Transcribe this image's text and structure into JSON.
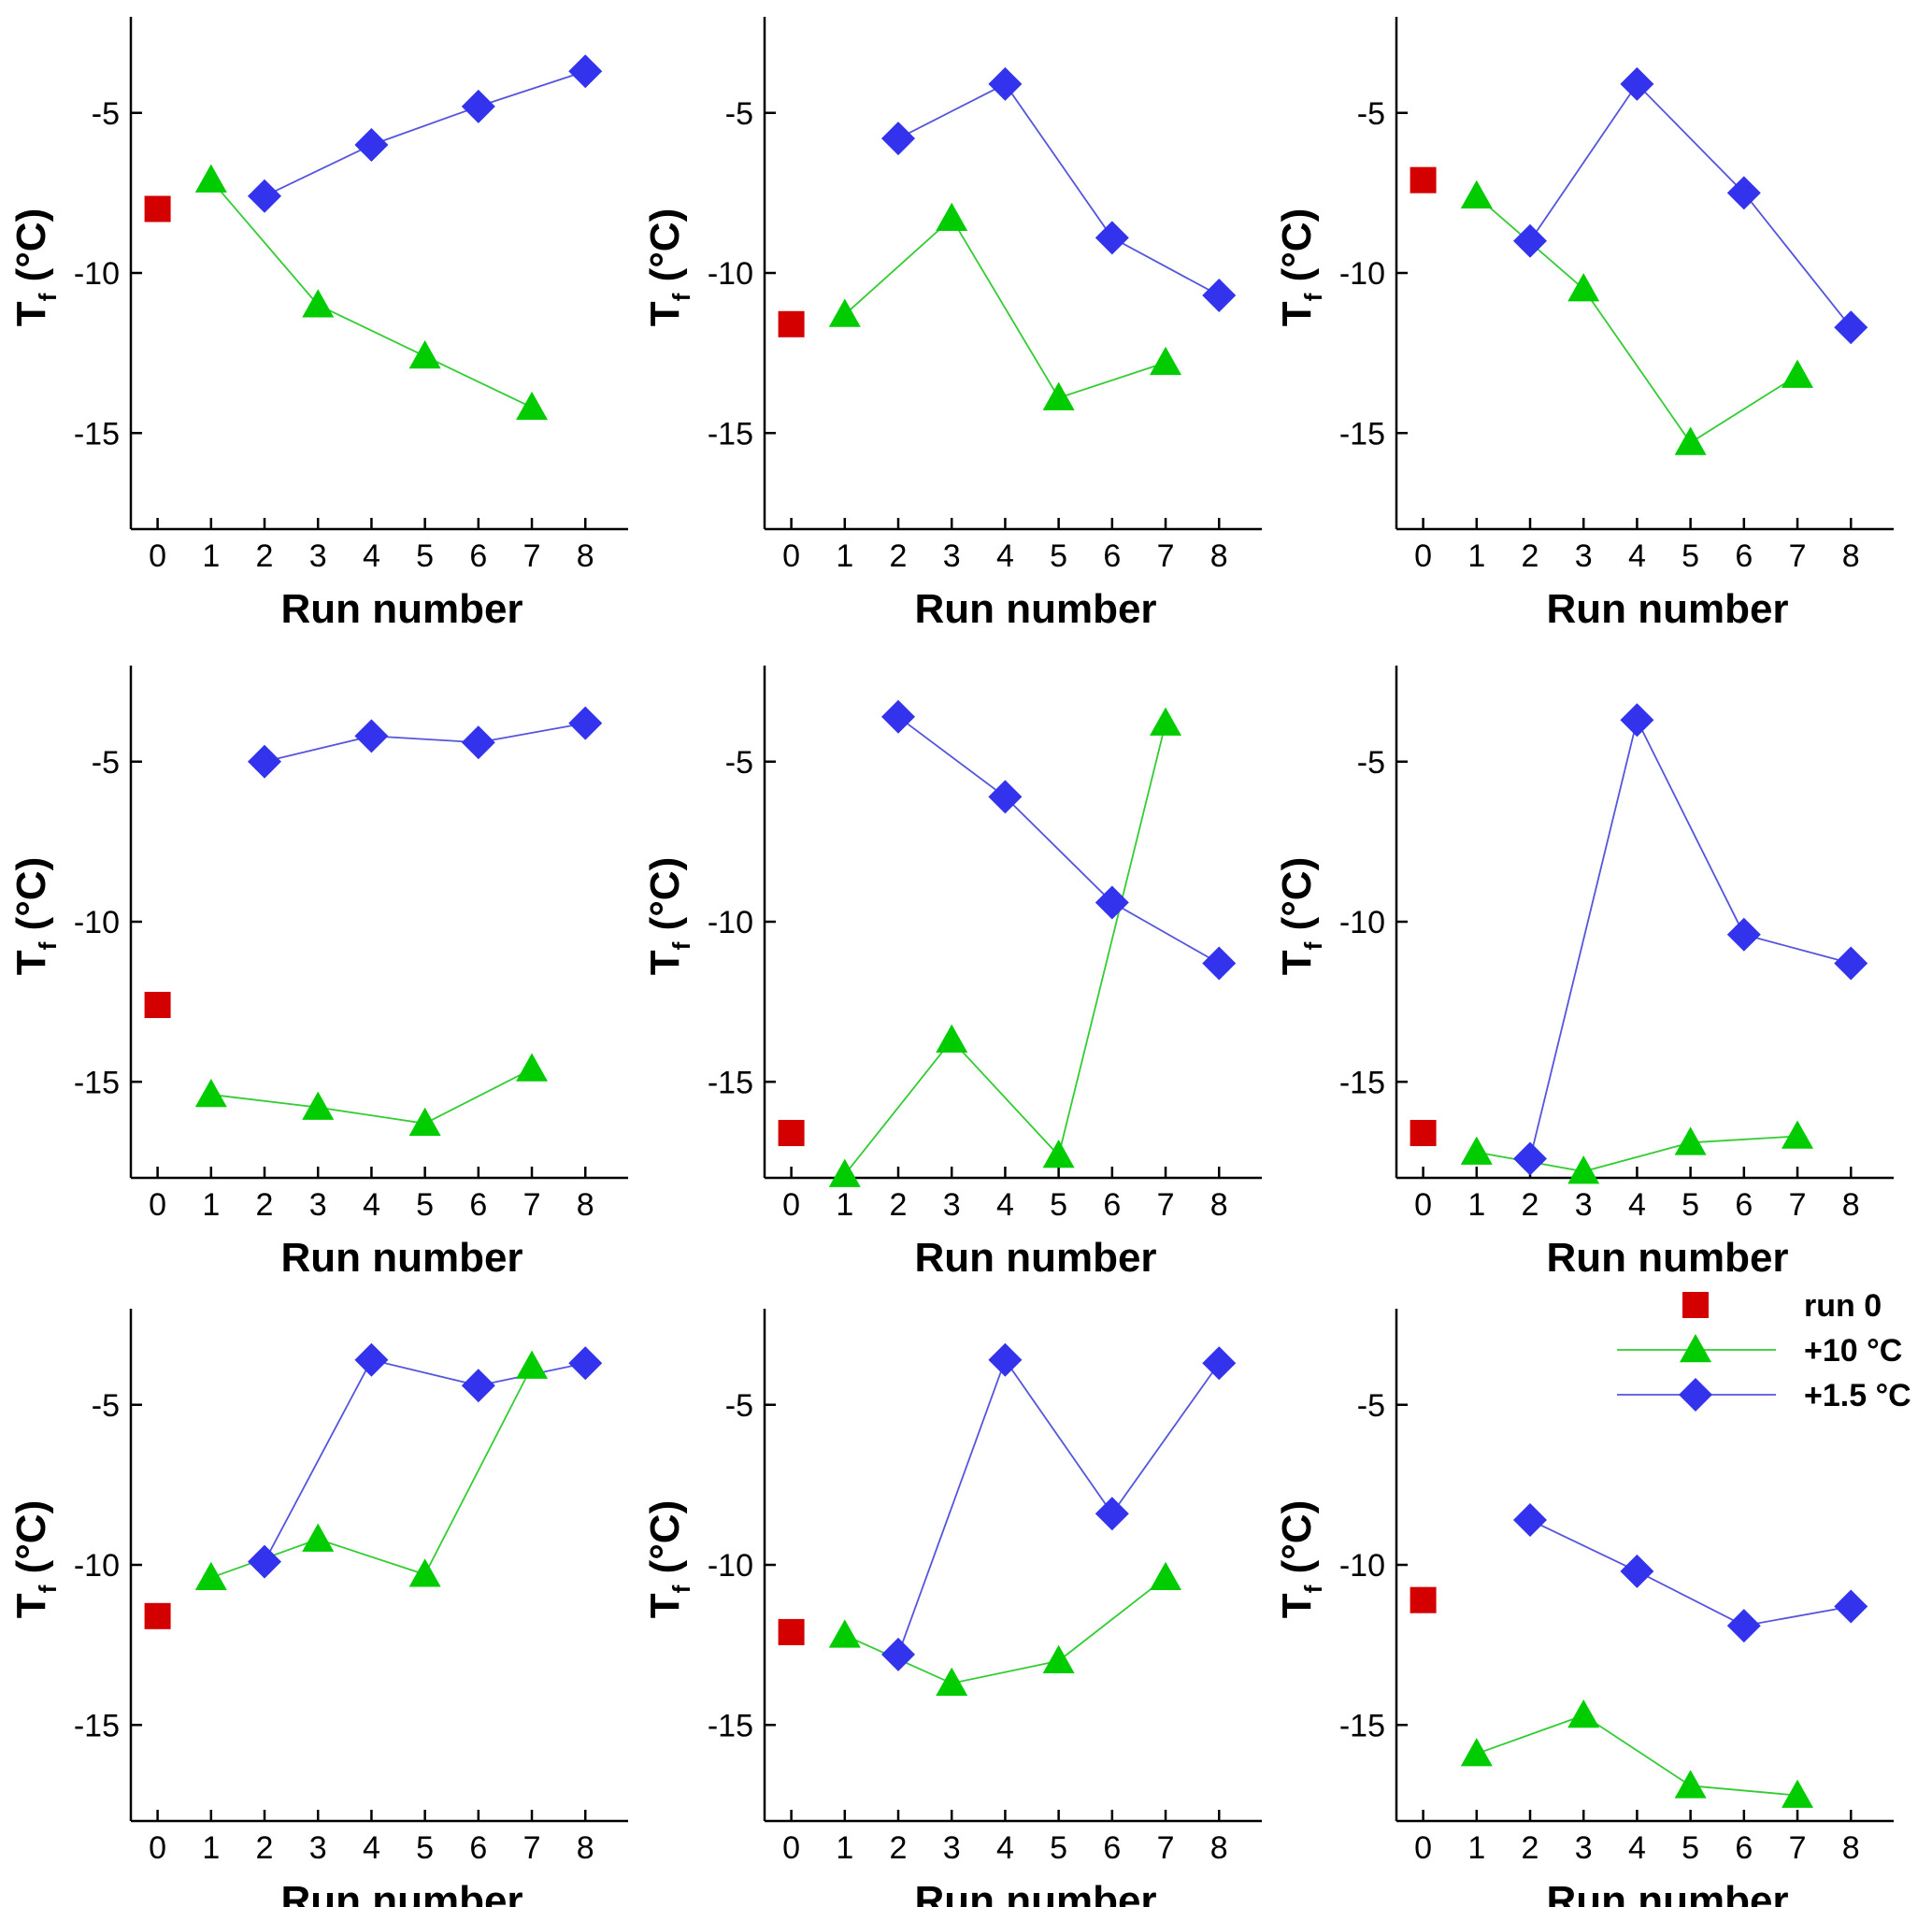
{
  "colors": {
    "run0": "#d40000",
    "plus10": "#00cc00",
    "plus15": "#3333ee",
    "plus10_line": "#33cc33",
    "plus15_line": "#5555dd"
  },
  "legend": {
    "run0": "run 0",
    "plus10": "+10 °C",
    "plus15": "+1.5 °C"
  },
  "chart_data": [
    {
      "type": "line",
      "xlabel": "Run number",
      "ylabel": "T",
      "ylabel_subscript": "f",
      "ylabel_unit": " (°C)",
      "x_ticks": [
        0,
        1,
        2,
        3,
        4,
        5,
        6,
        7,
        8
      ],
      "y_ticks": [
        -5,
        -10,
        -15
      ],
      "xlim": [
        -0.5,
        8.8
      ],
      "ylim": [
        -18,
        -2
      ],
      "series": [
        {
          "name": "run 0",
          "marker": "square",
          "x": [
            0
          ],
          "y": [
            -8
          ]
        },
        {
          "name": "+10 °C",
          "marker": "triangle",
          "x": [
            1,
            3,
            5,
            7
          ],
          "y": [
            -7.1,
            -11.0,
            -12.6,
            -14.2
          ]
        },
        {
          "name": "+1.5 °C",
          "marker": "diamond",
          "x": [
            2,
            4,
            6,
            8
          ],
          "y": [
            -7.6,
            -6.0,
            -4.8,
            -3.7
          ]
        }
      ]
    },
    {
      "type": "line",
      "xlabel": "Run number",
      "ylabel": "T",
      "ylabel_subscript": "f",
      "ylabel_unit": " (°C)",
      "x_ticks": [
        0,
        1,
        2,
        3,
        4,
        5,
        6,
        7,
        8
      ],
      "y_ticks": [
        -5,
        -10,
        -15
      ],
      "xlim": [
        -0.5,
        8.8
      ],
      "ylim": [
        -18,
        -2
      ],
      "series": [
        {
          "name": "run 0",
          "marker": "square",
          "x": [
            0
          ],
          "y": [
            -11.6
          ]
        },
        {
          "name": "+10 °C",
          "marker": "triangle",
          "x": [
            1,
            3,
            5,
            7
          ],
          "y": [
            -11.3,
            -8.3,
            -13.9,
            -12.8
          ]
        },
        {
          "name": "+1.5 °C",
          "marker": "diamond",
          "x": [
            2,
            4,
            6,
            8
          ],
          "y": [
            -5.8,
            -4.1,
            -8.9,
            -10.7
          ]
        }
      ]
    },
    {
      "type": "line",
      "xlabel": "Run number",
      "ylabel": "T",
      "ylabel_subscript": "f",
      "ylabel_unit": " (°C)",
      "x_ticks": [
        0,
        1,
        2,
        3,
        4,
        5,
        6,
        7,
        8
      ],
      "y_ticks": [
        -5,
        -10,
        -15
      ],
      "xlim": [
        -0.5,
        8.8
      ],
      "ylim": [
        -18,
        -2
      ],
      "series": [
        {
          "name": "run 0",
          "marker": "square",
          "x": [
            0
          ],
          "y": [
            -7.1
          ]
        },
        {
          "name": "+10 °C",
          "marker": "triangle",
          "x": [
            1,
            3,
            5,
            7
          ],
          "y": [
            -7.6,
            -10.5,
            -15.3,
            -13.2
          ]
        },
        {
          "name": "+1.5 °C",
          "marker": "diamond",
          "x": [
            2,
            4,
            6,
            8
          ],
          "y": [
            -9.0,
            -4.1,
            -7.5,
            -11.7
          ]
        }
      ]
    },
    {
      "type": "line",
      "xlabel": "Run number",
      "ylabel": "T",
      "ylabel_subscript": "f",
      "ylabel_unit": " (°C)",
      "x_ticks": [
        0,
        1,
        2,
        3,
        4,
        5,
        6,
        7,
        8
      ],
      "y_ticks": [
        -5,
        -10,
        -15
      ],
      "xlim": [
        -0.5,
        8.8
      ],
      "ylim": [
        -18,
        -2
      ],
      "series": [
        {
          "name": "run 0",
          "marker": "square",
          "x": [
            0
          ],
          "y": [
            -12.6
          ]
        },
        {
          "name": "+10 °C",
          "marker": "triangle",
          "x": [
            1,
            3,
            5,
            7
          ],
          "y": [
            -15.4,
            -15.8,
            -16.3,
            -14.6
          ]
        },
        {
          "name": "+1.5 °C",
          "marker": "diamond",
          "x": [
            2,
            4,
            6,
            8
          ],
          "y": [
            -5.0,
            -4.2,
            -4.4,
            -3.8
          ]
        }
      ]
    },
    {
      "type": "line",
      "xlabel": "Run number",
      "ylabel": "T",
      "ylabel_subscript": "f",
      "ylabel_unit": " (°C)",
      "x_ticks": [
        0,
        1,
        2,
        3,
        4,
        5,
        6,
        7,
        8
      ],
      "y_ticks": [
        -5,
        -10,
        -15
      ],
      "xlim": [
        -0.5,
        8.8
      ],
      "ylim": [
        -18,
        -2
      ],
      "series": [
        {
          "name": "run 0",
          "marker": "square",
          "x": [
            0
          ],
          "y": [
            -16.6
          ]
        },
        {
          "name": "+10 °C",
          "marker": "triangle",
          "x": [
            1,
            3,
            5,
            7
          ],
          "y": [
            -17.9,
            -13.7,
            -17.3,
            -3.8
          ]
        },
        {
          "name": "+1.5 °C",
          "marker": "diamond",
          "x": [
            2,
            4,
            6,
            8
          ],
          "y": [
            -3.6,
            -6.1,
            -9.4,
            -11.3
          ]
        }
      ]
    },
    {
      "type": "line",
      "xlabel": "Run number",
      "ylabel": "T",
      "ylabel_subscript": "f",
      "ylabel_unit": " (°C)",
      "x_ticks": [
        0,
        1,
        2,
        3,
        4,
        5,
        6,
        7,
        8
      ],
      "y_ticks": [
        -5,
        -10,
        -15
      ],
      "xlim": [
        -0.5,
        8.8
      ],
      "ylim": [
        -18,
        -2
      ],
      "series": [
        {
          "name": "run 0",
          "marker": "square",
          "x": [
            0
          ],
          "y": [
            -16.6
          ]
        },
        {
          "name": "+10 °C",
          "marker": "triangle",
          "x": [
            1,
            3,
            5,
            7
          ],
          "y": [
            -17.2,
            -17.8,
            -16.9,
            -16.7
          ]
        },
        {
          "name": "+1.5 °C",
          "marker": "diamond",
          "x": [
            2,
            4,
            6,
            8
          ],
          "y": [
            -17.4,
            -3.7,
            -10.4,
            -11.3
          ]
        }
      ]
    },
    {
      "type": "line",
      "xlabel": "Run number",
      "ylabel": "T",
      "ylabel_subscript": "f",
      "ylabel_unit": " (°C)",
      "x_ticks": [
        0,
        1,
        2,
        3,
        4,
        5,
        6,
        7,
        8
      ],
      "y_ticks": [
        -5,
        -10,
        -15
      ],
      "xlim": [
        -0.5,
        8.8
      ],
      "ylim": [
        -18,
        -2
      ],
      "series": [
        {
          "name": "run 0",
          "marker": "square",
          "x": [
            0
          ],
          "y": [
            -11.6
          ]
        },
        {
          "name": "+10 °C",
          "marker": "triangle",
          "x": [
            1,
            3,
            5,
            7
          ],
          "y": [
            -10.4,
            -9.2,
            -10.3,
            -3.8
          ]
        },
        {
          "name": "+1.5 °C",
          "marker": "diamond",
          "x": [
            2,
            4,
            6,
            8
          ],
          "y": [
            -9.9,
            -3.6,
            -4.4,
            -3.7
          ]
        }
      ]
    },
    {
      "type": "line",
      "xlabel": "Run number",
      "ylabel": "T",
      "ylabel_subscript": "f",
      "ylabel_unit": " (°C)",
      "x_ticks": [
        0,
        1,
        2,
        3,
        4,
        5,
        6,
        7,
        8
      ],
      "y_ticks": [
        -5,
        -10,
        -15
      ],
      "xlim": [
        -0.5,
        8.8
      ],
      "ylim": [
        -18,
        -2
      ],
      "series": [
        {
          "name": "run 0",
          "marker": "square",
          "x": [
            0
          ],
          "y": [
            -12.1
          ]
        },
        {
          "name": "+10 °C",
          "marker": "triangle",
          "x": [
            1,
            3,
            5,
            7
          ],
          "y": [
            -12.2,
            -13.7,
            -13.0,
            -10.4
          ]
        },
        {
          "name": "+1.5 °C",
          "marker": "diamond",
          "x": [
            2,
            4,
            6,
            8
          ],
          "y": [
            -12.8,
            -3.6,
            -8.4,
            -3.7
          ]
        }
      ]
    },
    {
      "type": "line",
      "xlabel": "Run number",
      "ylabel": "T",
      "ylabel_subscript": "f",
      "ylabel_unit": " (°C)",
      "x_ticks": [
        0,
        1,
        2,
        3,
        4,
        5,
        6,
        7,
        8
      ],
      "y_ticks": [
        -5,
        -10,
        -15
      ],
      "xlim": [
        -0.5,
        8.8
      ],
      "ylim": [
        -18,
        -2
      ],
      "legend": "top-right",
      "series": [
        {
          "name": "run 0",
          "marker": "square",
          "x": [
            0
          ],
          "y": [
            -11.1
          ]
        },
        {
          "name": "+10 °C",
          "marker": "triangle",
          "x": [
            1,
            3,
            5,
            7
          ],
          "y": [
            -15.9,
            -14.7,
            -16.9,
            -17.2
          ]
        },
        {
          "name": "+1.5 °C",
          "marker": "diamond",
          "x": [
            2,
            4,
            6,
            8
          ],
          "y": [
            -8.6,
            -10.2,
            -11.9,
            -11.3
          ]
        }
      ]
    }
  ]
}
